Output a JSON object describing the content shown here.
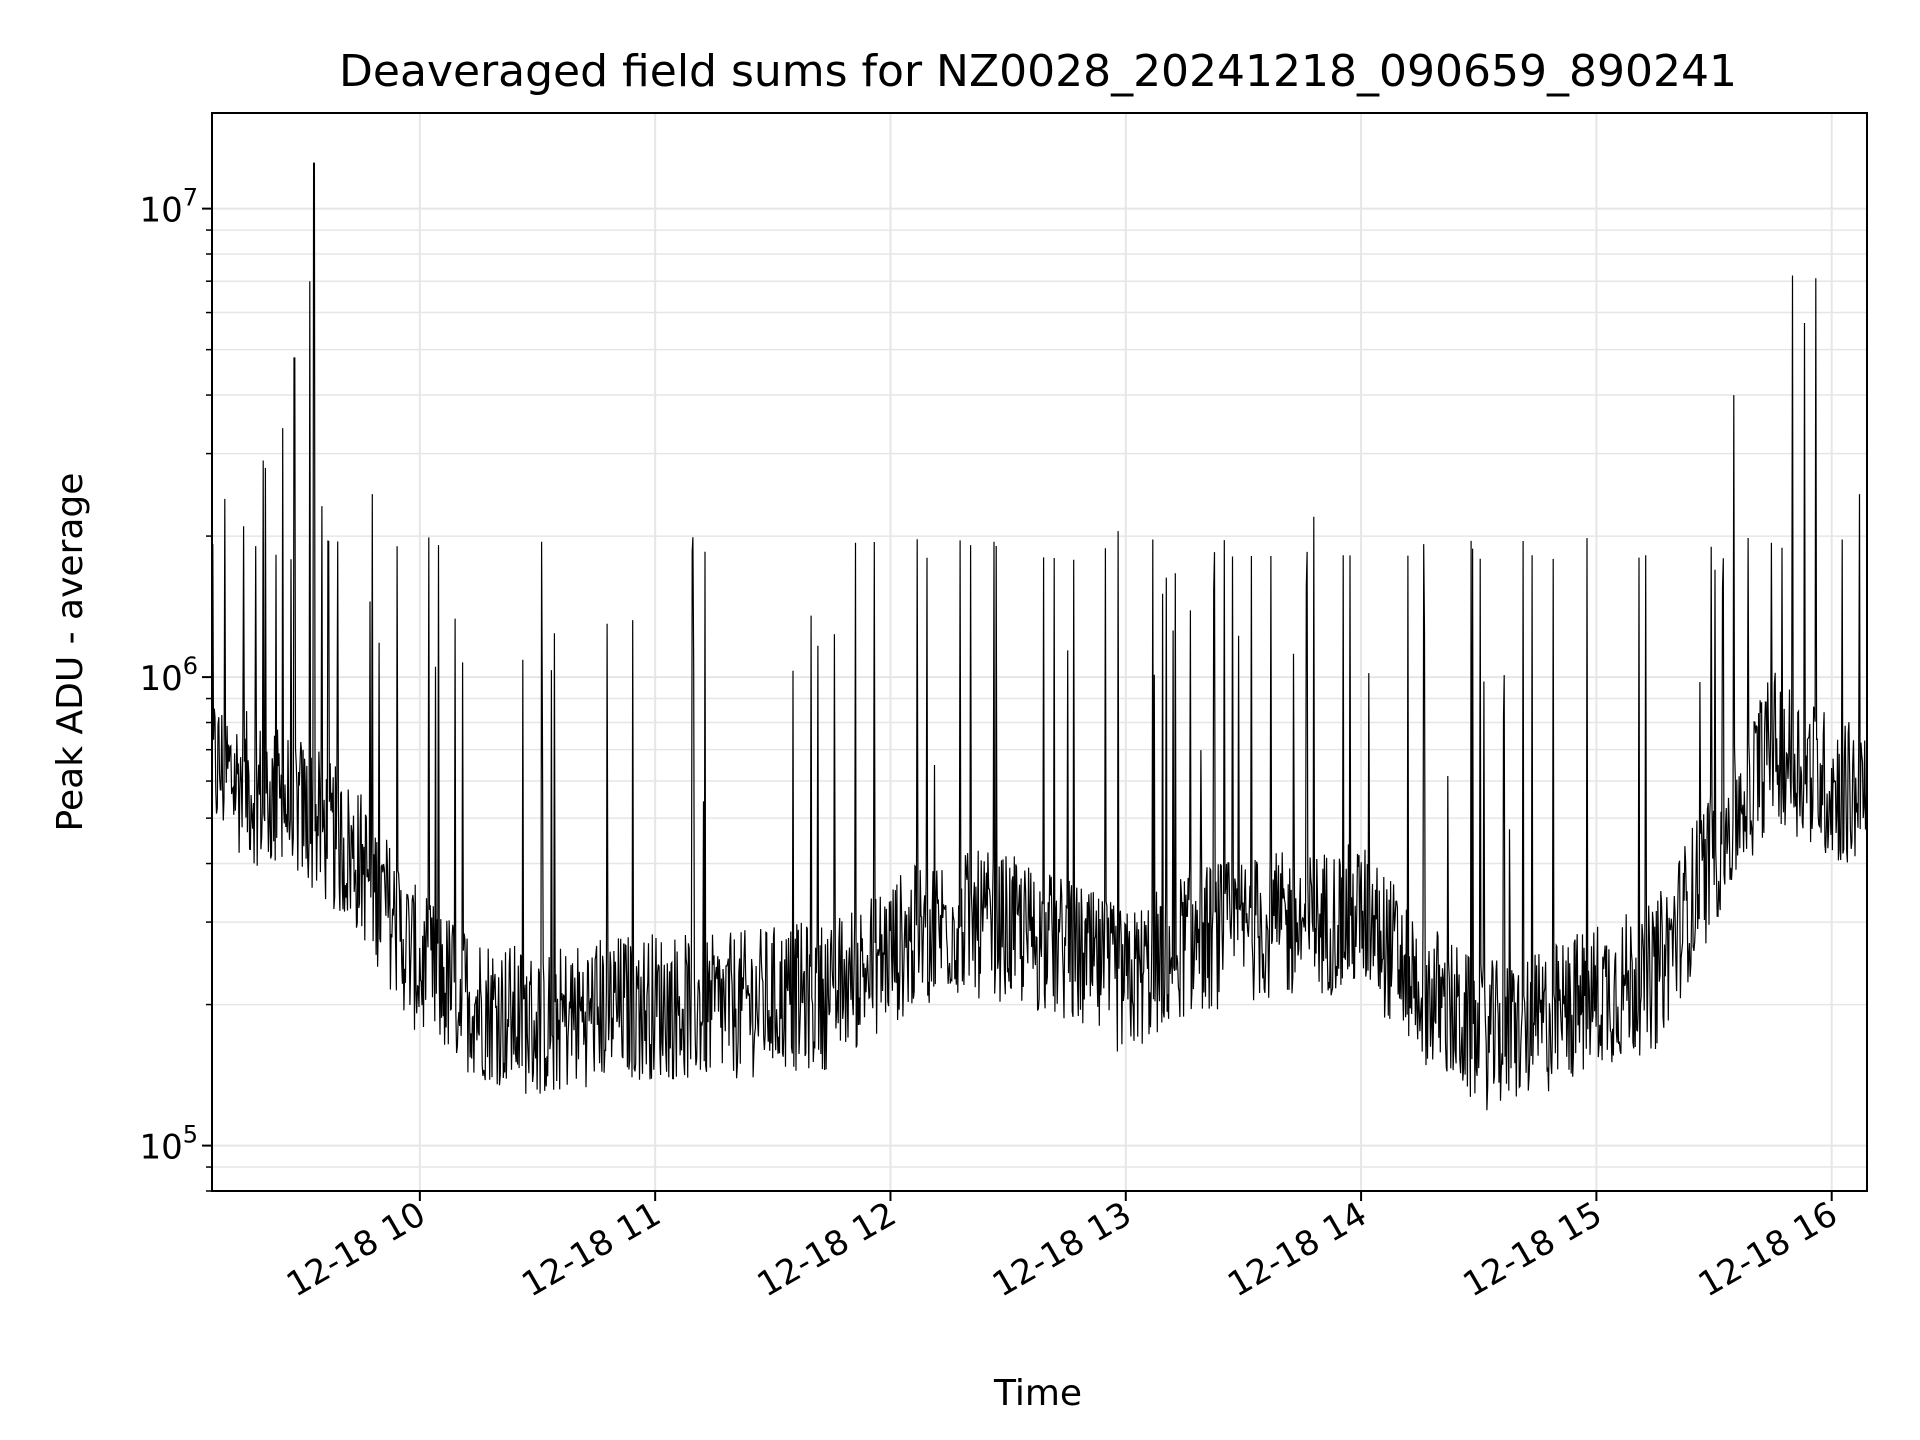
{
  "chart_data": {
    "type": "line",
    "title": "Deaveraged field sums for NZ0028_20241218_090659_890241",
    "xlabel": "Time",
    "ylabel": "Peak ADU - average",
    "yscale": "log",
    "grid": true,
    "grid_minor_y": true,
    "line_color": "#000000",
    "grid_color": "#e6e6e6",
    "xlim": [
      "2024-12-18 09:07",
      "2024-12-18 16:09"
    ],
    "ylim": [
      80000,
      16000000
    ],
    "x_ticks": [
      {
        "x": "2024-12-18 10:00",
        "label": "12-18 10"
      },
      {
        "x": "2024-12-18 11:00",
        "label": "12-18 11"
      },
      {
        "x": "2024-12-18 12:00",
        "label": "12-18 12"
      },
      {
        "x": "2024-12-18 13:00",
        "label": "12-18 13"
      },
      {
        "x": "2024-12-18 14:00",
        "label": "12-18 14"
      },
      {
        "x": "2024-12-18 15:00",
        "label": "12-18 15"
      },
      {
        "x": "2024-12-18 16:00",
        "label": "12-18 16"
      }
    ],
    "y_ticks": [
      {
        "value": 100000,
        "base": "10",
        "exp": "5"
      },
      {
        "value": 1000000,
        "base": "10",
        "exp": "6"
      },
      {
        "value": 10000000,
        "base": "10",
        "exp": "7"
      }
    ],
    "series": [
      {
        "x": [
          "2024-12-18 09:07",
          "2024-12-18 09:20",
          "2024-12-18 09:30",
          "2024-12-18 09:45",
          "2024-12-18 10:00",
          "2024-12-18 10:15",
          "2024-12-18 10:30",
          "2024-12-18 10:45",
          "2024-12-18 11:00",
          "2024-12-18 11:15",
          "2024-12-18 11:30",
          "2024-12-18 11:45",
          "2024-12-18 12:00",
          "2024-12-18 12:15",
          "2024-12-18 12:30",
          "2024-12-18 12:45",
          "2024-12-18 13:00",
          "2024-12-18 13:15",
          "2024-12-18 13:30",
          "2024-12-18 13:45",
          "2024-12-18 14:00",
          "2024-12-18 14:15",
          "2024-12-18 14:30",
          "2024-12-18 14:45",
          "2024-12-18 15:00",
          "2024-12-18 15:15",
          "2024-12-18 15:30",
          "2024-12-18 15:45",
          "2024-12-18 16:00",
          "2024-12-18 16:09"
        ],
        "y": [
          650000,
          560000,
          520000,
          400000,
          240000,
          200000,
          180000,
          195000,
          200000,
          195000,
          205000,
          210000,
          260000,
          300000,
          290000,
          260000,
          220000,
          270000,
          290000,
          295000,
          310000,
          220000,
          170000,
          180000,
          210000,
          230000,
          420000,
          720000,
          580000,
          550000
        ]
      }
    ],
    "spikes": [
      {
        "x": "2024-12-18 09:33",
        "y": 12500000
      },
      {
        "x": "2024-12-18 09:32",
        "y": 7000000
      },
      {
        "x": "2024-12-18 09:28",
        "y": 4800000
      },
      {
        "x": "2024-12-18 09:25",
        "y": 3400000
      },
      {
        "x": "2024-12-18 09:20",
        "y": 2900000
      },
      {
        "x": "2024-12-18 09:15",
        "y": 2100000
      },
      {
        "x": "2024-12-18 15:50",
        "y": 7200000
      },
      {
        "x": "2024-12-18 15:56",
        "y": 7100000
      },
      {
        "x": "2024-12-18 15:53",
        "y": 5700000
      },
      {
        "x": "2024-12-18 15:35",
        "y": 4000000
      },
      {
        "x": "2024-12-18 13:48",
        "y": 2200000
      },
      {
        "x": "2024-12-18 12:58",
        "y": 2050000
      }
    ]
  }
}
